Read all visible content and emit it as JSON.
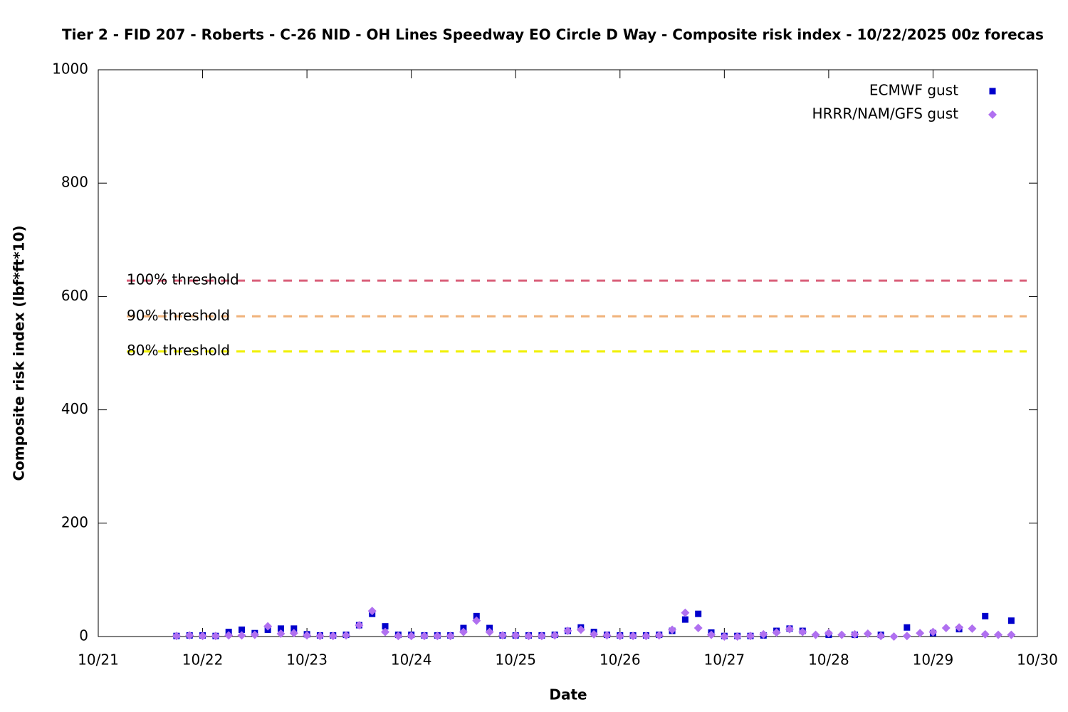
{
  "chart_data": {
    "type": "scatter",
    "title": "Tier 2 - FID 207 - Roberts - C-26 NID - OH Lines Speedway EO Circle D Way - Composite risk index - 10/22/2025 00z forecas",
    "xlabel": "Date",
    "ylabel": "Composite risk index (lbf*ft*10)",
    "xlim": [
      21,
      30
    ],
    "xticks": [
      {
        "value": 21,
        "label": "10/21"
      },
      {
        "value": 22,
        "label": "10/22"
      },
      {
        "value": 23,
        "label": "10/23"
      },
      {
        "value": 24,
        "label": "10/24"
      },
      {
        "value": 25,
        "label": "10/25"
      },
      {
        "value": 26,
        "label": "10/26"
      },
      {
        "value": 27,
        "label": "10/27"
      },
      {
        "value": 28,
        "label": "10/28"
      },
      {
        "value": 29,
        "label": "10/29"
      },
      {
        "value": 30,
        "label": "10/30"
      }
    ],
    "ylim": [
      0,
      1000
    ],
    "yticks": [
      0,
      200,
      400,
      600,
      800,
      1000
    ],
    "legend": "top-right",
    "thresholds": [
      {
        "label": "100% threshold",
        "value": 628,
        "color": "#d9607a"
      },
      {
        "label": "90% threshold",
        "value": 565,
        "color": "#f0b27a"
      },
      {
        "label": "80% threshold",
        "value": 503,
        "color": "#f0f000"
      }
    ],
    "series": [
      {
        "name": "ECMWF gust",
        "color": "#0000cc",
        "marker": "square",
        "x": [
          21.75,
          21.875,
          22,
          22.125,
          22.25,
          22.375,
          22.5,
          22.625,
          22.75,
          22.875,
          23,
          23.125,
          23.25,
          23.375,
          23.5,
          23.625,
          23.75,
          23.875,
          24,
          24.125,
          24.25,
          24.375,
          24.5,
          24.625,
          24.75,
          24.875,
          25,
          25.125,
          25.25,
          25.375,
          25.5,
          25.625,
          25.75,
          25.875,
          26,
          26.125,
          26.25,
          26.375,
          26.5,
          26.625,
          26.75,
          26.875,
          27,
          27.125,
          27.25,
          27.375,
          27.5,
          27.625,
          27.75,
          28,
          28.25,
          28.5,
          28.75,
          29,
          29.25,
          29.5,
          29.75
        ],
        "values": [
          1,
          2,
          2,
          1,
          8,
          12,
          6,
          12,
          14,
          14,
          4,
          2,
          2,
          3,
          20,
          40,
          18,
          3,
          3,
          2,
          2,
          2,
          15,
          36,
          15,
          2,
          2,
          2,
          2,
          3,
          10,
          16,
          8,
          3,
          2,
          2,
          2,
          3,
          10,
          30,
          40,
          7,
          1,
          1,
          1,
          2,
          10,
          14,
          10,
          3,
          3,
          3,
          16,
          6,
          13,
          36,
          28
        ]
      },
      {
        "name": "HRRR/NAM/GFS gust",
        "color": "#b070f0",
        "marker": "diamond",
        "x": [
          21.75,
          21.875,
          22,
          22.125,
          22.25,
          22.375,
          22.5,
          22.625,
          22.75,
          22.875,
          23,
          23.125,
          23.25,
          23.375,
          23.5,
          23.625,
          23.75,
          23.875,
          24,
          24.125,
          24.25,
          24.375,
          24.5,
          24.625,
          24.75,
          24.875,
          25,
          25.125,
          25.25,
          25.375,
          25.5,
          25.625,
          25.75,
          25.875,
          26,
          26.125,
          26.25,
          26.375,
          26.5,
          26.625,
          26.75,
          26.875,
          27,
          27.125,
          27.25,
          27.375,
          27.5,
          27.625,
          27.75,
          27.875,
          28,
          28.125,
          28.25,
          28.375,
          28.5,
          28.625,
          28.75,
          28.875,
          29,
          29.125,
          29.25,
          29.375,
          29.5,
          29.625,
          29.75
        ],
        "values": [
          1,
          2,
          1,
          1,
          2,
          2,
          3,
          18,
          5,
          6,
          2,
          1,
          1,
          2,
          20,
          45,
          8,
          1,
          1,
          1,
          1,
          1,
          8,
          28,
          8,
          2,
          2,
          1,
          1,
          2,
          10,
          12,
          4,
          2,
          1,
          1,
          1,
          2,
          12,
          42,
          15,
          3,
          0,
          0,
          1,
          4,
          7,
          13,
          8,
          3,
          6,
          3,
          4,
          5,
          1,
          0,
          1,
          6,
          8,
          15,
          16,
          14,
          4,
          3,
          3
        ]
      }
    ]
  }
}
